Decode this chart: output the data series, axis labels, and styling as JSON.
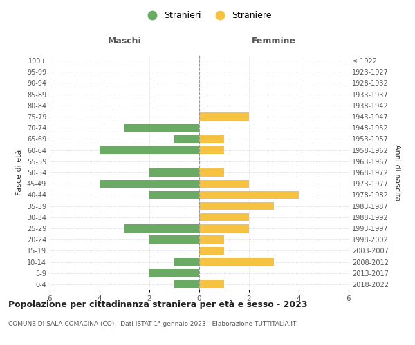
{
  "age_groups": [
    "0-4",
    "5-9",
    "10-14",
    "15-19",
    "20-24",
    "25-29",
    "30-34",
    "35-39",
    "40-44",
    "45-49",
    "50-54",
    "55-59",
    "60-64",
    "65-69",
    "70-74",
    "75-79",
    "80-84",
    "85-89",
    "90-94",
    "95-99",
    "100+"
  ],
  "birth_years": [
    "2018-2022",
    "2013-2017",
    "2008-2012",
    "2003-2007",
    "1998-2002",
    "1993-1997",
    "1988-1992",
    "1983-1987",
    "1978-1982",
    "1973-1977",
    "1968-1972",
    "1963-1967",
    "1958-1962",
    "1953-1957",
    "1948-1952",
    "1943-1947",
    "1938-1942",
    "1933-1937",
    "1928-1932",
    "1923-1927",
    "≤ 1922"
  ],
  "maschi": [
    1,
    2,
    1,
    0,
    2,
    3,
    0,
    0,
    2,
    4,
    2,
    0,
    4,
    1,
    3,
    0,
    0,
    0,
    0,
    0,
    0
  ],
  "femmine": [
    1,
    0,
    3,
    1,
    1,
    2,
    2,
    3,
    4,
    2,
    1,
    0,
    1,
    1,
    0,
    2,
    0,
    0,
    0,
    0,
    0
  ],
  "male_color": "#6aaa64",
  "female_color": "#f5c242",
  "title": "Popolazione per cittadinanza straniera per età e sesso - 2023",
  "subtitle": "COMUNE DI SALA COMACINA (CO) - Dati ISTAT 1° gennaio 2023 - Elaborazione TUTTITALIA.IT",
  "ylabel_left": "Fasce di età",
  "ylabel_right": "Anni di nascita",
  "xlabel_left": "Maschi",
  "xlabel_right": "Femmine",
  "legend_stranieri": "Stranieri",
  "legend_straniere": "Straniere",
  "xlim": 6,
  "background_color": "#ffffff",
  "grid_color": "#cccccc"
}
